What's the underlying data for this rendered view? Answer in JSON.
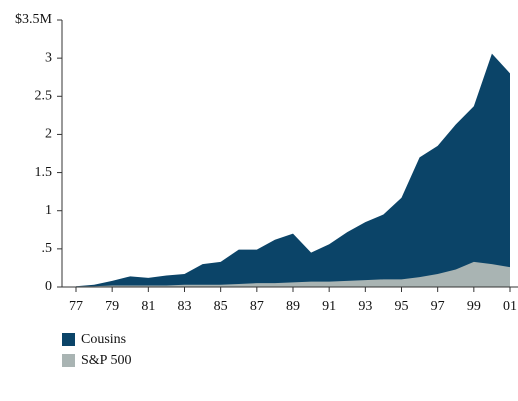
{
  "chart_data": {
    "type": "area",
    "categories": [
      "77",
      null,
      "79",
      null,
      "81",
      null,
      "83",
      null,
      "85",
      null,
      "87",
      null,
      "89",
      null,
      "91",
      null,
      "93",
      null,
      "95",
      null,
      "97",
      null,
      "99",
      null,
      "01"
    ],
    "series": [
      {
        "name": "Cousins",
        "color": "#0b4468",
        "values": [
          0.01,
          0.03,
          0.08,
          0.14,
          0.12,
          0.15,
          0.17,
          0.3,
          0.33,
          0.49,
          0.49,
          0.62,
          0.7,
          0.45,
          0.56,
          0.72,
          0.85,
          0.95,
          1.17,
          1.7,
          1.85,
          2.13,
          2.37,
          3.06,
          2.8
        ]
      },
      {
        "name": "S&P 500",
        "color": "#a9b4b3",
        "values": [
          0.01,
          0.01,
          0.02,
          0.02,
          0.02,
          0.02,
          0.03,
          0.03,
          0.03,
          0.04,
          0.05,
          0.05,
          0.06,
          0.07,
          0.07,
          0.08,
          0.09,
          0.1,
          0.1,
          0.13,
          0.17,
          0.23,
          0.33,
          0.3,
          0.26
        ]
      }
    ],
    "ylim": [
      0,
      3.5
    ],
    "yticks": [
      0,
      {
        "value": 0.5,
        "label": ".5"
      },
      1,
      1.5,
      2,
      2.5,
      3,
      {
        "value": 3.5,
        "label": "$3.5M"
      }
    ],
    "legend": "bottom-left"
  }
}
